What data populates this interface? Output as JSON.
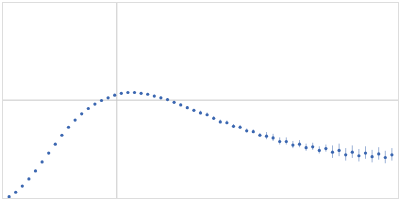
{
  "chart_data": {
    "type": "scatter",
    "color": "#3a66b0",
    "marker": "circle",
    "x": [
      0.1,
      0.2,
      0.3,
      0.4,
      0.5,
      0.6,
      0.7,
      0.8,
      0.9,
      1.0,
      1.1,
      1.2,
      1.3,
      1.4,
      1.5,
      1.6,
      1.7,
      1.8,
      1.9,
      2.0,
      2.1,
      2.2,
      2.3,
      2.4,
      2.5,
      2.6,
      2.7,
      2.8,
      2.9,
      3.0,
      3.1,
      3.2,
      3.3,
      3.4,
      3.5,
      3.6,
      3.7,
      3.8,
      3.9,
      4.0,
      4.1,
      4.2,
      4.3,
      4.4,
      4.5,
      4.6,
      4.7,
      4.8,
      4.9,
      5.0,
      5.1,
      5.2,
      5.3,
      5.4,
      5.5,
      5.6,
      5.7,
      5.8,
      5.9
    ],
    "values": [
      0.02,
      0.07,
      0.14,
      0.22,
      0.31,
      0.41,
      0.51,
      0.61,
      0.71,
      0.8,
      0.88,
      0.95,
      1.01,
      1.06,
      1.1,
      1.13,
      1.16,
      1.18,
      1.19,
      1.19,
      1.18,
      1.17,
      1.15,
      1.13,
      1.11,
      1.08,
      1.05,
      1.02,
      0.99,
      0.96,
      0.94,
      0.9,
      0.86,
      0.85,
      0.81,
      0.8,
      0.76,
      0.75,
      0.71,
      0.7,
      0.68,
      0.64,
      0.64,
      0.6,
      0.61,
      0.57,
      0.58,
      0.54,
      0.56,
      0.52,
      0.54,
      0.49,
      0.52,
      0.48,
      0.51,
      0.47,
      0.5,
      0.46,
      0.49
    ],
    "errors": [
      0.005,
      0.005,
      0.005,
      0.005,
      0.005,
      0.005,
      0.005,
      0.005,
      0.005,
      0.005,
      0.005,
      0.005,
      0.005,
      0.005,
      0.005,
      0.005,
      0.005,
      0.005,
      0.005,
      0.01,
      0.01,
      0.01,
      0.01,
      0.01,
      0.01,
      0.01,
      0.01,
      0.01,
      0.01,
      0.02,
      0.02,
      0.02,
      0.02,
      0.02,
      0.02,
      0.02,
      0.02,
      0.02,
      0.02,
      0.04,
      0.04,
      0.04,
      0.04,
      0.04,
      0.04,
      0.04,
      0.04,
      0.04,
      0.04,
      0.07,
      0.07,
      0.07,
      0.07,
      0.07,
      0.07,
      0.07,
      0.07,
      0.07,
      0.07
    ],
    "xlim": [
      0,
      6
    ],
    "ylim": [
      0,
      2.2
    ],
    "xticks": [
      1.732
    ],
    "yticks": [
      1.104
    ],
    "grid": true,
    "tick_labels": false
  }
}
